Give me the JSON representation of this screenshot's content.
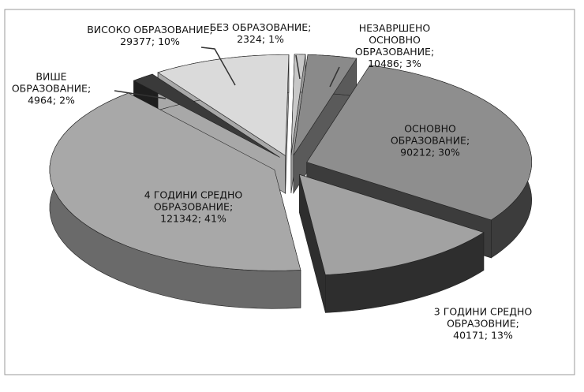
{
  "chart_data": {
    "type": "pie3d",
    "categories": [
      "БЕЗ ОБРАЗОВАНИЕ;",
      "НЕЗАВРШЕНО ОСНОВНО ОБРАЗОВАНИЕ;",
      "ОСНОВНО ОБРАЗОВАНИЕ;",
      "3 ГОДИНИ СРЕДНО ОБРАЗОВНИЕ;",
      "4 ГОДИНИ СРЕДНО ОБРАЗОВАНИЕ;",
      "ВИШЕ ОБРАЗОВАНИЕ;",
      "ВИСОКО ОБРАЗОВАНИЕ;"
    ],
    "values": [
      2324,
      10486,
      90212,
      40171,
      121342,
      4964,
      29377
    ],
    "value_labels": [
      "2324; 1%",
      "10486; 3%",
      "90212; 30%",
      "40171; 13%",
      "121342; 41%",
      "4964; 2%",
      "29377; 10%"
    ],
    "colors": [
      "#c8c8c8",
      "#8a8a8a",
      "#8e8e8e",
      "#a2a2a2",
      "#a8a8a8",
      "#3a3a3a",
      "#dadada"
    ],
    "side_colors": [
      "#9a9a9a",
      "#5a5a5a",
      "#3c3c3c",
      "#2e2e2e",
      "#6a6a6a",
      "#1e1e1e",
      "#a8a8a8"
    ]
  }
}
